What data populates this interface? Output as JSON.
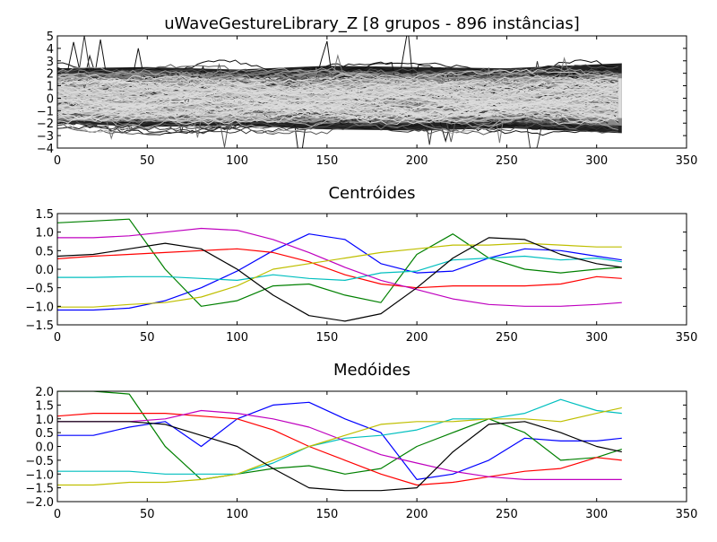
{
  "chart_data": [
    {
      "type": "line",
      "title": "uWaveGestureLibrary_Z [8 grupos - 896 instâncias]",
      "xlabel": "",
      "ylabel": "",
      "xlim": [
        0,
        350
      ],
      "ylim": [
        -4,
        5
      ],
      "xticks": [
        0,
        50,
        100,
        150,
        200,
        250,
        300,
        350
      ],
      "yticks": [
        -4,
        -3,
        -2,
        -1,
        0,
        1,
        2,
        3,
        4,
        5
      ],
      "grid": false,
      "series_count": 896,
      "note": "dense overlay of all time series shaded from black to light gray",
      "band": [
        {
          "name": "dark",
          "color": "#222222",
          "x": [
            0,
            50,
            100,
            150,
            200,
            250,
            314
          ],
          "y_upper": [
            2.4,
            2.5,
            2.3,
            2.6,
            2.5,
            2.4,
            2.8
          ],
          "y_lower": [
            -2.0,
            -2.3,
            -2.2,
            -2.5,
            -2.6,
            -2.4,
            -2.8
          ]
        },
        {
          "name": "mid",
          "color": "#888888",
          "x": [
            0,
            50,
            100,
            150,
            200,
            250,
            314
          ],
          "y_upper": [
            2.0,
            2.0,
            1.9,
            2.0,
            2.0,
            1.8,
            2.0
          ],
          "y_lower": [
            -1.8,
            -1.9,
            -1.8,
            -2.0,
            -2.0,
            -1.9,
            -2.2
          ]
        },
        {
          "name": "light",
          "color": "#dcdcdc",
          "x": [
            0,
            50,
            100,
            150,
            200,
            250,
            314
          ],
          "y_upper": [
            1.6,
            1.7,
            1.6,
            1.7,
            1.6,
            1.5,
            1.6
          ],
          "y_lower": [
            -1.2,
            -1.5,
            -1.4,
            -1.6,
            -1.5,
            -1.4,
            -1.6
          ]
        }
      ]
    },
    {
      "type": "line",
      "title": "Centróides",
      "xlabel": "",
      "ylabel": "",
      "xlim": [
        0,
        350
      ],
      "ylim": [
        -1.5,
        1.5
      ],
      "xticks": [
        0,
        50,
        100,
        150,
        200,
        250,
        300,
        350
      ],
      "yticks": [
        -1.5,
        -1.0,
        -0.5,
        0.0,
        0.5,
        1.0,
        1.5
      ],
      "ytick_labels": [
        "−1.5",
        "−1.0",
        "−0.5",
        "0.0",
        "0.5",
        "1.0",
        "1.5"
      ],
      "grid": false,
      "x": [
        0,
        20,
        40,
        60,
        80,
        100,
        120,
        140,
        160,
        180,
        200,
        220,
        240,
        260,
        280,
        300,
        314
      ],
      "series": [
        {
          "color": "#0000ff",
          "values": [
            -1.1,
            -1.1,
            -1.05,
            -0.85,
            -0.5,
            -0.05,
            0.5,
            0.95,
            0.8,
            0.15,
            -0.1,
            -0.05,
            0.3,
            0.55,
            0.5,
            0.35,
            0.25
          ]
        },
        {
          "color": "#008000",
          "values": [
            1.25,
            1.3,
            1.35,
            0.0,
            -1.0,
            -0.85,
            -0.45,
            -0.4,
            -0.7,
            -0.9,
            0.4,
            0.95,
            0.3,
            0.0,
            -0.1,
            0.0,
            0.05
          ]
        },
        {
          "color": "#ff0000",
          "values": [
            0.28,
            0.35,
            0.4,
            0.45,
            0.5,
            0.55,
            0.45,
            0.2,
            -0.15,
            -0.4,
            -0.5,
            -0.45,
            -0.45,
            -0.45,
            -0.4,
            -0.2,
            -0.25
          ]
        },
        {
          "color": "#00bfbf",
          "values": [
            -0.22,
            -0.22,
            -0.2,
            -0.2,
            -0.25,
            -0.3,
            -0.15,
            -0.25,
            -0.3,
            -0.1,
            -0.05,
            0.25,
            0.3,
            0.35,
            0.25,
            0.3,
            0.2
          ]
        },
        {
          "color": "#bf00bf",
          "values": [
            0.85,
            0.85,
            0.9,
            1.0,
            1.1,
            1.05,
            0.8,
            0.45,
            0.05,
            -0.3,
            -0.55,
            -0.8,
            -0.95,
            -1.0,
            -1.0,
            -0.95,
            -0.9
          ]
        },
        {
          "color": "#bfbf00",
          "values": [
            -1.02,
            -1.02,
            -0.95,
            -0.9,
            -0.75,
            -0.45,
            0.0,
            0.15,
            0.3,
            0.45,
            0.55,
            0.65,
            0.65,
            0.7,
            0.65,
            0.6,
            0.6
          ]
        },
        {
          "color": "#000000",
          "values": [
            0.35,
            0.4,
            0.55,
            0.7,
            0.55,
            0.0,
            -0.7,
            -1.25,
            -1.4,
            -1.2,
            -0.5,
            0.3,
            0.85,
            0.8,
            0.4,
            0.15,
            0.05
          ]
        }
      ]
    },
    {
      "type": "line",
      "title": "Medóides",
      "xlabel": "",
      "ylabel": "",
      "xlim": [
        0,
        350
      ],
      "ylim": [
        -2.0,
        2.0
      ],
      "xticks": [
        0,
        50,
        100,
        150,
        200,
        250,
        300,
        350
      ],
      "yticks": [
        -2.0,
        -1.5,
        -1.0,
        -0.5,
        0.0,
        0.5,
        1.0,
        1.5,
        2.0
      ],
      "ytick_labels": [
        "−2.0",
        "−1.5",
        "−1.0",
        "−0.5",
        "0.0",
        "0.5",
        "1.0",
        "1.5",
        "2.0"
      ],
      "grid": false,
      "x": [
        0,
        20,
        40,
        60,
        80,
        100,
        120,
        140,
        160,
        180,
        200,
        220,
        240,
        260,
        280,
        300,
        314
      ],
      "series": [
        {
          "color": "#0000ff",
          "values": [
            0.4,
            0.4,
            0.7,
            0.9,
            0.0,
            1.0,
            1.5,
            1.6,
            1.0,
            0.5,
            -1.2,
            -1.0,
            -0.5,
            0.3,
            0.2,
            0.2,
            0.3
          ]
        },
        {
          "color": "#008000",
          "values": [
            2.0,
            2.0,
            1.9,
            0.0,
            -1.2,
            -1.0,
            -0.8,
            -0.7,
            -1.0,
            -0.8,
            0.0,
            0.5,
            1.0,
            0.5,
            -0.5,
            -0.4,
            -0.1
          ]
        },
        {
          "color": "#ff0000",
          "values": [
            1.1,
            1.2,
            1.2,
            1.2,
            1.1,
            1.0,
            0.6,
            0.0,
            -0.5,
            -1.0,
            -1.4,
            -1.3,
            -1.1,
            -0.9,
            -0.8,
            -0.4,
            -0.5
          ]
        },
        {
          "color": "#00bfbf",
          "values": [
            -0.9,
            -0.9,
            -0.9,
            -1.0,
            -1.0,
            -1.0,
            -0.6,
            0.0,
            0.3,
            0.4,
            0.6,
            1.0,
            1.0,
            1.2,
            1.7,
            1.3,
            1.2
          ]
        },
        {
          "color": "#bf00bf",
          "values": [
            0.9,
            0.9,
            0.9,
            1.0,
            1.3,
            1.2,
            1.0,
            0.7,
            0.2,
            -0.3,
            -0.6,
            -0.9,
            -1.1,
            -1.2,
            -1.2,
            -1.2,
            -1.2
          ]
        },
        {
          "color": "#bfbf00",
          "values": [
            -1.4,
            -1.4,
            -1.3,
            -1.3,
            -1.2,
            -1.0,
            -0.5,
            0.0,
            0.4,
            0.8,
            0.9,
            0.9,
            1.0,
            1.0,
            0.9,
            1.2,
            1.4
          ]
        },
        {
          "color": "#000000",
          "values": [
            0.9,
            0.9,
            0.9,
            0.8,
            0.4,
            0.0,
            -0.8,
            -1.5,
            -1.6,
            -1.6,
            -1.5,
            -0.2,
            0.8,
            0.9,
            0.5,
            0.0,
            -0.2
          ]
        }
      ]
    }
  ]
}
